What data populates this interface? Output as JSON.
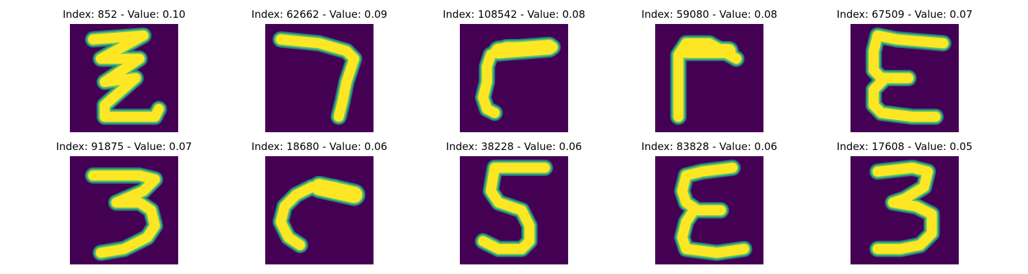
{
  "colors": {
    "background": "#440154",
    "stroke_core": "#fde725",
    "stroke_mid": "#5ec962",
    "stroke_edge": "#21918c"
  },
  "panels": [
    {
      "title": "Index: 852 - Value: 0.10",
      "glyph": "z-zigzag-digit"
    },
    {
      "title": "Index: 62662 - Value: 0.09",
      "glyph": "seven-digit"
    },
    {
      "title": "Index: 108542 - Value: 0.08",
      "glyph": "hook-corner-glyph"
    },
    {
      "title": "Index: 59080 - Value: 0.08",
      "glyph": "corner-glyph"
    },
    {
      "title": "Index: 67509 - Value: 0.07",
      "glyph": "epsilon-glyph"
    },
    {
      "title": "Index: 91875 - Value: 0.07",
      "glyph": "three-digit"
    },
    {
      "title": "Index: 18680 - Value: 0.06",
      "glyph": "arc-glyph"
    },
    {
      "title": "Index: 38228 - Value: 0.06",
      "glyph": "five-digit"
    },
    {
      "title": "Index: 83828 - Value: 0.06",
      "glyph": "epsilon-glyph"
    },
    {
      "title": "Index: 17608 - Value: 0.05",
      "glyph": "three-digit"
    }
  ]
}
